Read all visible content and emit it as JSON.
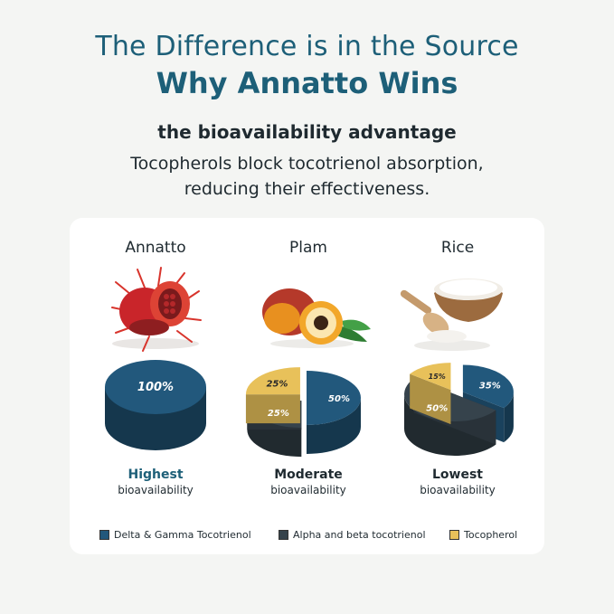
{
  "header": {
    "title_line1": "The Difference is in the Source",
    "title_line2": "Why Annatto Wins",
    "subtitle": "the bioavailability advantage",
    "body_line1": "Tocopherols block tocotrienol absorption,",
    "body_line2": "reducing their effectiveness."
  },
  "colors": {
    "delta_gamma": "#22587c",
    "alpha_beta": "#36434c",
    "tocopherol": "#e8c15a",
    "title": "#1d5f78"
  },
  "chart_data": {
    "type": "pie",
    "series_names": [
      "Delta & Gamma Tocotrienol",
      "Alpha and beta tocotrienol",
      "Tocopherol"
    ],
    "charts": [
      {
        "title": "Annatto",
        "slices": [
          {
            "name": "Delta & Gamma Tocotrienol",
            "value": 100,
            "label": "100%"
          }
        ],
        "bioavailability_level": "Highest",
        "bioavailability_caption": "bioavailability"
      },
      {
        "title": "Plam",
        "slices": [
          {
            "name": "Delta & Gamma Tocotrienol",
            "value": 50,
            "label": "50%"
          },
          {
            "name": "Alpha and beta tocotrienol",
            "value": 25,
            "label": "25%"
          },
          {
            "name": "Tocopherol",
            "value": 25,
            "label": "25%"
          }
        ],
        "bioavailability_level": "Moderate",
        "bioavailability_caption": "bioavailability"
      },
      {
        "title": "Rice",
        "slices": [
          {
            "name": "Delta & Gamma Tocotrienol",
            "value": 35,
            "label": "35%"
          },
          {
            "name": "Alpha and beta tocotrienol",
            "value": 50,
            "label": "50%"
          },
          {
            "name": "Tocopherol",
            "value": 15,
            "label": "15%"
          }
        ],
        "bioavailability_level": "Lowest",
        "bioavailability_caption": "bioavailability"
      }
    ],
    "legend_position": "bottom"
  }
}
